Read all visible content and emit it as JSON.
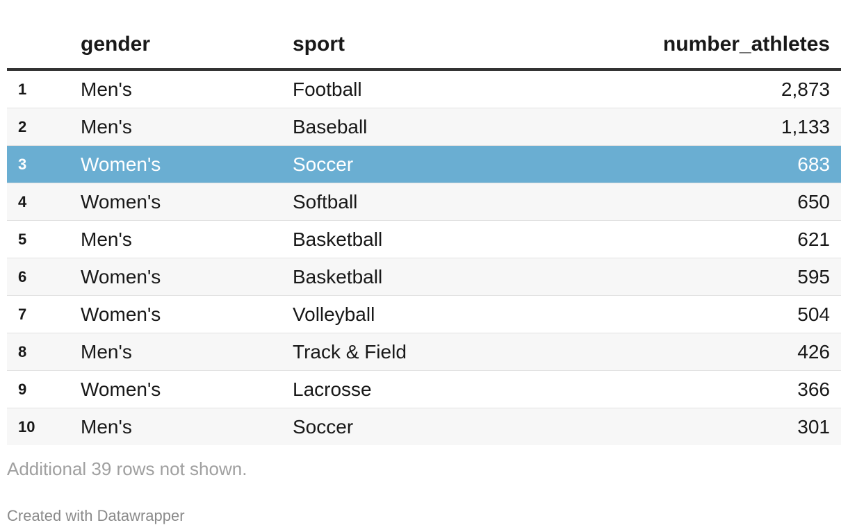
{
  "chart_data": {
    "type": "table",
    "columns": [
      "gender",
      "sport",
      "number_athletes"
    ],
    "rows": [
      {
        "index": "1",
        "gender": "Men's",
        "sport": "Football",
        "number_athletes": "2,873"
      },
      {
        "index": "2",
        "gender": "Men's",
        "sport": "Baseball",
        "number_athletes": "1,133"
      },
      {
        "index": "3",
        "gender": "Women's",
        "sport": "Soccer",
        "number_athletes": "683"
      },
      {
        "index": "4",
        "gender": "Women's",
        "sport": "Softball",
        "number_athletes": "650"
      },
      {
        "index": "5",
        "gender": "Men's",
        "sport": "Basketball",
        "number_athletes": "621"
      },
      {
        "index": "6",
        "gender": "Women's",
        "sport": "Basketball",
        "number_athletes": "595"
      },
      {
        "index": "7",
        "gender": "Women's",
        "sport": "Volleyball",
        "number_athletes": "504"
      },
      {
        "index": "8",
        "gender": "Men's",
        "sport": "Track & Field",
        "number_athletes": "426"
      },
      {
        "index": "9",
        "gender": "Women's",
        "sport": "Lacrosse",
        "number_athletes": "366"
      },
      {
        "index": "10",
        "gender": "Men's",
        "sport": "Soccer",
        "number_athletes": "301"
      }
    ],
    "highlighted_row": 3,
    "highlight_color": "#6aaed2",
    "footnote": "Additional 39 rows not shown."
  },
  "credit": "Created with Datawrapper"
}
